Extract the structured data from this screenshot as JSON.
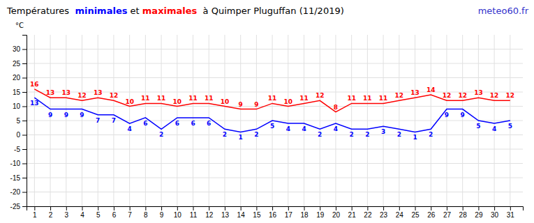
{
  "chart_data": {
    "type": "line",
    "title": "Températures  minimales et maximales  à Quimper Pluguffan (11/2019)",
    "ylabel": "°C",
    "annotations": [
      {
        "text": "meteo60.fr",
        "color": "#3333cc"
      }
    ],
    "x": [
      1,
      2,
      3,
      4,
      5,
      6,
      7,
      8,
      9,
      10,
      11,
      12,
      13,
      14,
      15,
      16,
      17,
      18,
      19,
      20,
      21,
      22,
      23,
      24,
      25,
      26,
      27,
      28,
      29,
      30,
      31
    ],
    "series": [
      {
        "name": "minimales",
        "color": "#0000ff",
        "values": [
          13,
          9,
          9,
          9,
          7,
          7,
          4,
          6,
          2,
          6,
          6,
          6,
          2,
          1,
          2,
          5,
          4,
          4,
          2,
          4,
          2,
          2,
          3,
          2,
          1,
          2,
          9,
          9,
          5,
          4,
          5
        ]
      },
      {
        "name": "maximales",
        "color": "#ff0000",
        "values": [
          16,
          13,
          13,
          12,
          13,
          12,
          10,
          11,
          11,
          10,
          11,
          11,
          10,
          9,
          9,
          11,
          10,
          11,
          12,
          8,
          11,
          11,
          11,
          12,
          13,
          14,
          12,
          12,
          13,
          12,
          12
        ]
      }
    ],
    "xlim": [
      0.5,
      31.8
    ],
    "xticks": [
      1,
      2,
      3,
      4,
      5,
      6,
      7,
      8,
      9,
      10,
      11,
      12,
      13,
      14,
      15,
      16,
      17,
      18,
      19,
      20,
      21,
      22,
      23,
      24,
      25,
      26,
      27,
      28,
      29,
      30,
      31
    ],
    "ylim": [
      -25,
      35
    ],
    "yticks": [
      -25,
      -20,
      -15,
      -10,
      -5,
      0,
      5,
      10,
      15,
      20,
      25,
      30
    ],
    "grid": true,
    "data_labels": true
  }
}
